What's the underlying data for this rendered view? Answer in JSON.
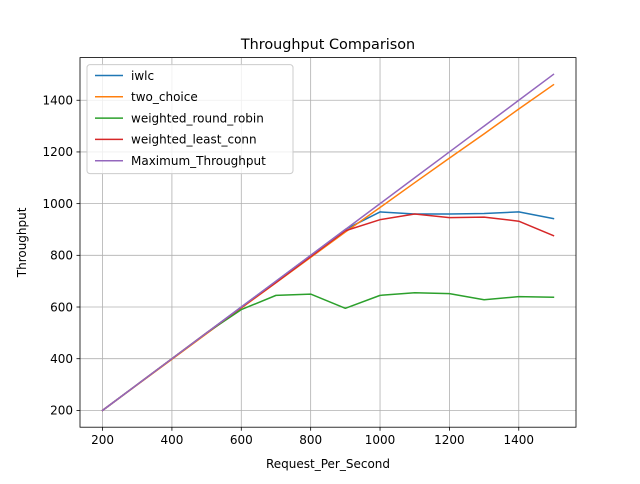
{
  "chart_data": {
    "type": "line",
    "title": "Throughput Comparison",
    "xlabel": "Request_Per_Second",
    "ylabel": "Throughput",
    "xlim": [
      135,
      1565
    ],
    "ylim": [
      135,
      1565
    ],
    "xticks": [
      200,
      400,
      600,
      800,
      1000,
      1200,
      1400
    ],
    "yticks": [
      200,
      400,
      600,
      800,
      1000,
      1200,
      1400
    ],
    "grid": true,
    "legend_position": "top-left",
    "x": [
      200,
      300,
      400,
      500,
      600,
      700,
      800,
      900,
      1000,
      1100,
      1200,
      1300,
      1400,
      1500
    ],
    "series": [
      {
        "name": "iwlc",
        "color": "#1f77b4",
        "values": [
          200,
          300,
          400,
          500,
          600,
          700,
          800,
          900,
          968,
          960,
          960,
          962,
          968,
          942
        ]
      },
      {
        "name": "two_choice",
        "color": "#ff7f0e",
        "values": [
          200,
          299,
          398,
          497,
          596,
          694,
          792,
          890,
          985,
          1081,
          1176,
          1270,
          1366,
          1460
        ]
      },
      {
        "name": "weighted_round_robin",
        "color": "#2ca02c",
        "values": [
          200,
          300,
          400,
          500,
          590,
          645,
          650,
          595,
          645,
          655,
          652,
          628,
          640,
          638
        ]
      },
      {
        "name": "weighted_least_conn",
        "color": "#d62728",
        "values": [
          200,
          300,
          400,
          500,
          598,
          695,
          795,
          895,
          938,
          960,
          946,
          948,
          932,
          876
        ]
      },
      {
        "name": "Maximum_Throughput",
        "color": "#9467bd",
        "values": [
          200,
          300,
          400,
          500,
          600,
          700,
          800,
          900,
          1000,
          1100,
          1200,
          1300,
          1400,
          1500
        ]
      }
    ]
  }
}
